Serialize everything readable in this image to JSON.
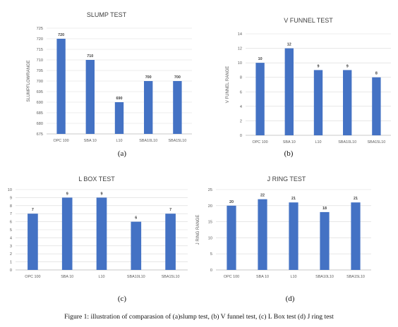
{
  "colors": {
    "bar": "#4472c4",
    "grid": "#d9d9d9"
  },
  "caption": "Figure 1: illustration of  comparasion of (a)slump test, (b) V funnel test, (c) L Box test (d)  J ring test",
  "sub_labels": [
    "(a)",
    "(b)",
    "(c)",
    "(d)"
  ],
  "chart_data": [
    {
      "type": "bar",
      "title": "SLUMP TEST",
      "ylabel": "SLUMPFLOWRANGE",
      "xlabel": "",
      "categories": [
        "OPC 100",
        "SBA 10",
        "L10",
        "SBA10L10",
        "SBA15L10"
      ],
      "values": [
        720,
        710,
        690,
        700,
        700
      ],
      "ylim": [
        675,
        725
      ],
      "yticks": [
        675,
        680,
        685,
        690,
        695,
        700,
        705,
        710,
        715,
        720,
        725
      ],
      "grid": true
    },
    {
      "type": "bar",
      "title": "V FUNNEL TEST",
      "ylabel": "V FUNNEL RANGE",
      "xlabel": "",
      "categories": [
        "OPC 100",
        "SBA 10",
        "L10",
        "SBA10L10",
        "SBA15L10"
      ],
      "values": [
        10,
        12,
        9,
        9,
        8
      ],
      "ylim": [
        0,
        14
      ],
      "yticks": [
        0,
        2,
        4,
        6,
        8,
        10,
        12,
        14
      ],
      "grid": true
    },
    {
      "type": "bar",
      "title": "L BOX TEST",
      "ylabel": "L BOX RANGE",
      "xlabel": "",
      "categories": [
        "OPC 100",
        "SBA 10",
        "L10",
        "SBA10L10",
        "SBA15L10"
      ],
      "values": [
        7,
        9,
        9,
        6,
        7
      ],
      "ylim": [
        0,
        10
      ],
      "yticks": [
        0,
        1,
        2,
        3,
        4,
        5,
        6,
        7,
        8,
        9,
        10
      ],
      "grid": true
    },
    {
      "type": "bar",
      "title": "J RING TEST",
      "ylabel": "J RING RANGE",
      "xlabel": "",
      "categories": [
        "OPC 100",
        "SBA 10",
        "L10",
        "SBA10L10",
        "SBA15L10"
      ],
      "values": [
        20,
        22,
        21,
        18,
        21
      ],
      "ylim": [
        0,
        25
      ],
      "yticks": [
        0,
        5,
        10,
        15,
        20,
        25
      ],
      "grid": true
    }
  ]
}
